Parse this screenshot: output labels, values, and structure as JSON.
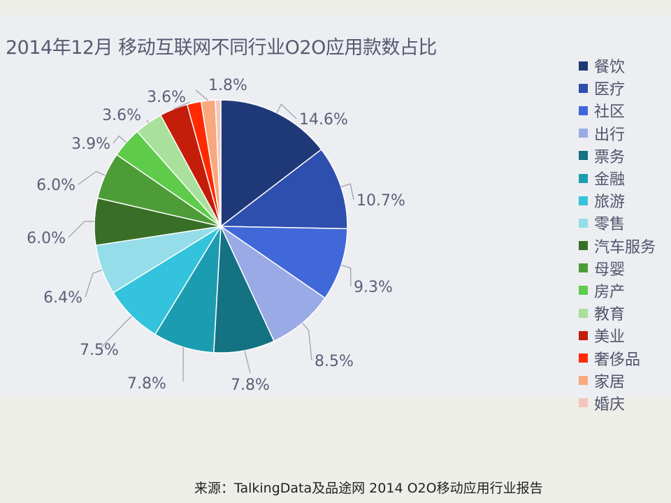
{
  "colors": {
    "panel_background": "#edeef2",
    "page_background": "#eeeee9",
    "label_text": "#5b5f78",
    "leader_line": "#9a9ba8"
  },
  "chart_data": {
    "type": "pie",
    "title": "2014年12月 移动互联网不同行业O2O应用款数占比",
    "start_angle": "12 o'clock",
    "direction": "clockwise",
    "legend_position": "right",
    "slices": [
      {
        "label": "餐饮",
        "value": 14.6,
        "display": "14.6%",
        "color": "#1f3877"
      },
      {
        "label": "医疗",
        "value": 10.7,
        "display": "10.7%",
        "color": "#2e4fad"
      },
      {
        "label": "社区",
        "value": 9.3,
        "display": "9.3%",
        "color": "#4068d9"
      },
      {
        "label": "出行",
        "value": 8.5,
        "display": "8.5%",
        "color": "#9aaae6"
      },
      {
        "label": "票务",
        "value": 7.8,
        "display": "7.8%",
        "color": "#147282"
      },
      {
        "label": "金融",
        "value": 7.8,
        "display": "7.8%",
        "color": "#1c9cb0"
      },
      {
        "label": "旅游",
        "value": 7.5,
        "display": "7.5%",
        "color": "#34c3dc"
      },
      {
        "label": "零售",
        "value": 6.4,
        "display": "6.4%",
        "color": "#94dde9"
      },
      {
        "label": "汽车服务",
        "value": 6.0,
        "display": "6.0%",
        "color": "#386e26"
      },
      {
        "label": "母婴",
        "value": 6.0,
        "display": "6.0%",
        "color": "#4d9c38"
      },
      {
        "label": "房产",
        "value": 3.9,
        "display": "3.9%",
        "color": "#5fcb4b"
      },
      {
        "label": "教育",
        "value": 3.6,
        "display": "3.6%",
        "color": "#a8e09c"
      },
      {
        "label": "美业",
        "value": 3.6,
        "display": "3.6%",
        "color": "#c41d0a"
      },
      {
        "label": "奢侈品",
        "value": 1.8,
        "display": "",
        "color": "#ff2a00"
      },
      {
        "label": "家居",
        "value": 1.8,
        "display": "1.8%",
        "color": "#f7a97d"
      },
      {
        "label": "婚庆",
        "value": 0.7,
        "display": "",
        "color": "#f4c6bb"
      }
    ]
  },
  "footer": {
    "source": "来源：TalkingData及品途网  2014 O2O移动应用行业报告"
  }
}
